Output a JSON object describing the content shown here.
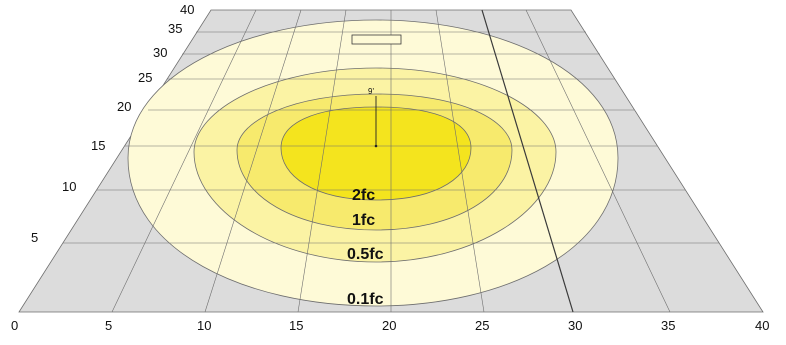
{
  "contours": {
    "colors": {
      "fill_0_1fc": "#fefad7",
      "fill_0_5fc": "#fbf3a4",
      "fill_1fc": "#f7ea6d",
      "fill_2fc": "#f4e41e",
      "floor": "#dcdcdc",
      "grid_line": "#6e6e6e",
      "contour_line": "#6e6e6e"
    },
    "labels": {
      "level_2fc": "2fc",
      "level_1fc": "1fc",
      "level_0_5fc": "0.5fc",
      "level_0_1fc": "0.1fc"
    }
  },
  "fixture": {
    "mounting_height_label": "9'"
  },
  "axes": {
    "x_ticks": [
      "0",
      "5",
      "10",
      "15",
      "20",
      "25",
      "30",
      "35",
      "40"
    ],
    "y_ticks": [
      "5",
      "10",
      "15",
      "20",
      "25",
      "30",
      "35",
      "40"
    ]
  }
}
